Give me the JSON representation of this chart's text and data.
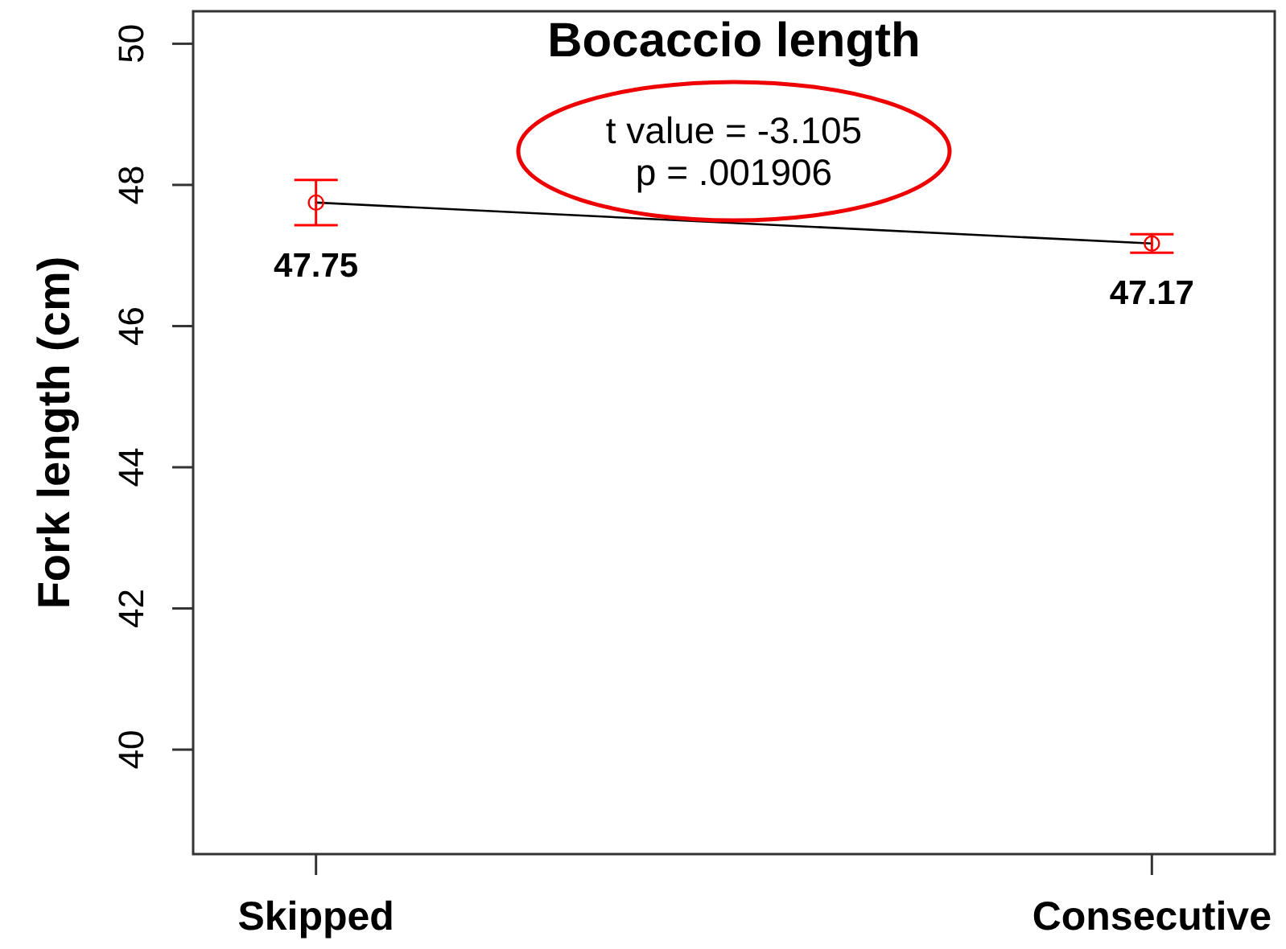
{
  "chart_data": {
    "type": "line",
    "title": "Bocaccio length",
    "ylabel": "Fork length (cm)",
    "categories": [
      "Skipped",
      "Consecutive"
    ],
    "series": [
      {
        "color": "#000000",
        "values": [
          47.75,
          47.17
        ],
        "marker": "none"
      },
      {
        "type": "scatter",
        "color": "#ff0000",
        "values": [
          47.75,
          47.17
        ],
        "errors": [
          0.32,
          0.13
        ],
        "marker": "circle",
        "value_labels": [
          "47.75",
          "47.17"
        ]
      }
    ],
    "ylim": [
      38.52,
      50.46
    ],
    "yticks": [
      40,
      42,
      44,
      46,
      48,
      50
    ],
    "annotations": [
      "t value = -3.105",
      "p = .001906"
    ]
  }
}
